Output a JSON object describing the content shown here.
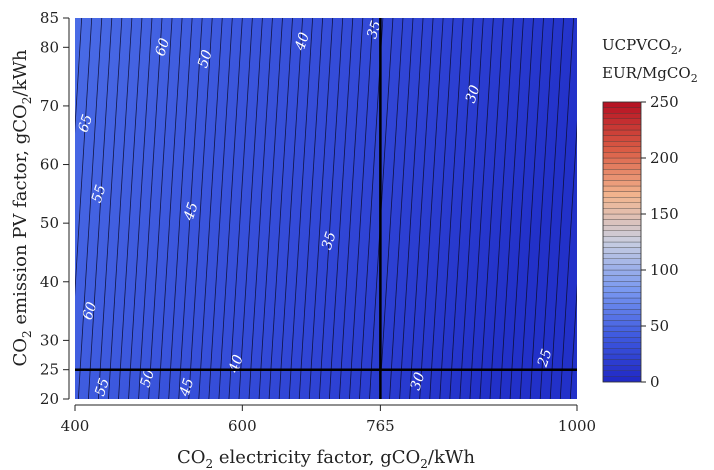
{
  "chart_data": {
    "type": "heatmap",
    "title": "",
    "xlabel": "CO2 electricity factor, gCO2/kWh",
    "xlabel_parts": {
      "pre": "CO",
      "sub": "2",
      "post": " electricity factor, gCO",
      "sub2": "2",
      "post2": "/kWh"
    },
    "ylabel": "CO2 emission PV factor, gCO2/kWh",
    "ylabel_parts": {
      "pre": "CO",
      "sub": "2",
      "post": " emission PV factor, gCO",
      "sub2": "2",
      "post2": "/kWh"
    },
    "xlim": [
      400,
      1000
    ],
    "ylim": [
      20,
      85
    ],
    "x_ticks": [
      400,
      600,
      765,
      1000
    ],
    "y_ticks": [
      20,
      25,
      30,
      40,
      50,
      60,
      70,
      80,
      85
    ],
    "colorbar": {
      "title_line1": "UCPVCO",
      "title_line1_sub": "2",
      "title_line1_post": ",",
      "title_line2": "EUR/MgCO",
      "title_line2_sub": "2",
      "range": [
        0,
        250
      ],
      "ticks": [
        0,
        50,
        100,
        150,
        200,
        250
      ],
      "colors": [
        "#1f27c4",
        "#3f5ae0",
        "#7b9af0",
        "#c8cde0",
        "#f2b58e",
        "#d95a44",
        "#b40f22"
      ]
    },
    "reference_lines": {
      "x": 765,
      "y": 25
    },
    "contour_levels": [
      25,
      30,
      35,
      40,
      45,
      50,
      55,
      60,
      65
    ],
    "contour_labels": [
      {
        "text": "60",
        "x": 505,
        "y": 80
      },
      {
        "text": "50",
        "x": 556,
        "y": 78
      },
      {
        "text": "40",
        "x": 672,
        "y": 81
      },
      {
        "text": "35",
        "x": 758,
        "y": 83
      },
      {
        "text": "30",
        "x": 876,
        "y": 72
      },
      {
        "text": "65",
        "x": 413,
        "y": 67
      },
      {
        "text": "55",
        "x": 429,
        "y": 55
      },
      {
        "text": "45",
        "x": 539,
        "y": 52
      },
      {
        "text": "35",
        "x": 704,
        "y": 47
      },
      {
        "text": "60",
        "x": 418,
        "y": 35
      },
      {
        "text": "40",
        "x": 593,
        "y": 26
      },
      {
        "text": "25",
        "x": 962,
        "y": 27
      },
      {
        "text": "55",
        "x": 433,
        "y": 22
      },
      {
        "text": "50",
        "x": 487,
        "y": 23.5
      },
      {
        "text": "45",
        "x": 534,
        "y": 22
      },
      {
        "text": "30",
        "x": 810,
        "y": 23
      }
    ]
  }
}
